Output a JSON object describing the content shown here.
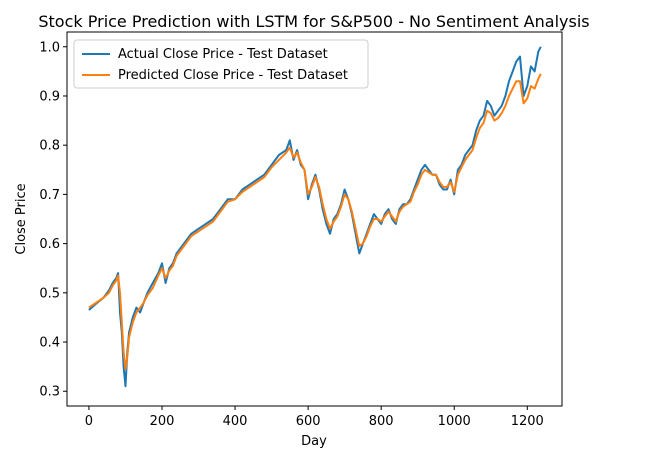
{
  "chart_data": {
    "type": "line",
    "title": "Stock Price Prediction with LSTM for S&P500 - No Sentiment Analysis",
    "xlabel": "Day",
    "ylabel": "Close Price",
    "xlim": [
      -60,
      1295
    ],
    "ylim": [
      0.27,
      1.03
    ],
    "xticks": [
      0,
      200,
      400,
      600,
      800,
      1000,
      1200
    ],
    "yticks": [
      0.3,
      0.4,
      0.5,
      0.6,
      0.7,
      0.8,
      0.9,
      1.0
    ],
    "ytick_labels": [
      "0.3",
      "0.4",
      "0.5",
      "0.6",
      "0.7",
      "0.8",
      "0.9",
      "1.0"
    ],
    "legend_position": "upper-left",
    "grid": false,
    "series": [
      {
        "name": "Actual Close Price - Test Dataset",
        "color": "#1f77b4",
        "points": [
          [
            0,
            0.465
          ],
          [
            20,
            0.478
          ],
          [
            40,
            0.49
          ],
          [
            55,
            0.505
          ],
          [
            65,
            0.52
          ],
          [
            75,
            0.53
          ],
          [
            80,
            0.54
          ],
          [
            85,
            0.46
          ],
          [
            90,
            0.42
          ],
          [
            95,
            0.35
          ],
          [
            100,
            0.31
          ],
          [
            105,
            0.38
          ],
          [
            110,
            0.42
          ],
          [
            120,
            0.45
          ],
          [
            130,
            0.47
          ],
          [
            140,
            0.46
          ],
          [
            150,
            0.48
          ],
          [
            160,
            0.5
          ],
          [
            175,
            0.52
          ],
          [
            190,
            0.54
          ],
          [
            200,
            0.56
          ],
          [
            210,
            0.52
          ],
          [
            220,
            0.55
          ],
          [
            230,
            0.56
          ],
          [
            240,
            0.58
          ],
          [
            260,
            0.6
          ],
          [
            280,
            0.62
          ],
          [
            300,
            0.63
          ],
          [
            320,
            0.64
          ],
          [
            340,
            0.65
          ],
          [
            360,
            0.67
          ],
          [
            380,
            0.69
          ],
          [
            400,
            0.69
          ],
          [
            420,
            0.71
          ],
          [
            440,
            0.72
          ],
          [
            460,
            0.73
          ],
          [
            480,
            0.74
          ],
          [
            500,
            0.76
          ],
          [
            520,
            0.78
          ],
          [
            540,
            0.79
          ],
          [
            550,
            0.81
          ],
          [
            560,
            0.77
          ],
          [
            570,
            0.79
          ],
          [
            580,
            0.76
          ],
          [
            590,
            0.75
          ],
          [
            600,
            0.69
          ],
          [
            610,
            0.72
          ],
          [
            620,
            0.74
          ],
          [
            630,
            0.71
          ],
          [
            640,
            0.67
          ],
          [
            650,
            0.64
          ],
          [
            660,
            0.62
          ],
          [
            670,
            0.65
          ],
          [
            680,
            0.66
          ],
          [
            690,
            0.68
          ],
          [
            700,
            0.71
          ],
          [
            710,
            0.69
          ],
          [
            720,
            0.66
          ],
          [
            730,
            0.62
          ],
          [
            740,
            0.58
          ],
          [
            750,
            0.6
          ],
          [
            760,
            0.62
          ],
          [
            770,
            0.64
          ],
          [
            780,
            0.66
          ],
          [
            790,
            0.65
          ],
          [
            800,
            0.64
          ],
          [
            810,
            0.66
          ],
          [
            820,
            0.67
          ],
          [
            830,
            0.65
          ],
          [
            840,
            0.64
          ],
          [
            850,
            0.67
          ],
          [
            860,
            0.68
          ],
          [
            870,
            0.68
          ],
          [
            880,
            0.69
          ],
          [
            890,
            0.71
          ],
          [
            900,
            0.73
          ],
          [
            910,
            0.75
          ],
          [
            920,
            0.76
          ],
          [
            930,
            0.75
          ],
          [
            940,
            0.74
          ],
          [
            950,
            0.74
          ],
          [
            960,
            0.72
          ],
          [
            970,
            0.71
          ],
          [
            980,
            0.71
          ],
          [
            990,
            0.73
          ],
          [
            1000,
            0.7
          ],
          [
            1010,
            0.75
          ],
          [
            1020,
            0.76
          ],
          [
            1030,
            0.78
          ],
          [
            1040,
            0.79
          ],
          [
            1050,
            0.8
          ],
          [
            1060,
            0.83
          ],
          [
            1070,
            0.85
          ],
          [
            1080,
            0.86
          ],
          [
            1090,
            0.89
          ],
          [
            1100,
            0.88
          ],
          [
            1110,
            0.86
          ],
          [
            1120,
            0.87
          ],
          [
            1130,
            0.88
          ],
          [
            1140,
            0.9
          ],
          [
            1150,
            0.93
          ],
          [
            1160,
            0.95
          ],
          [
            1170,
            0.97
          ],
          [
            1180,
            0.98
          ],
          [
            1190,
            0.9
          ],
          [
            1200,
            0.92
          ],
          [
            1210,
            0.96
          ],
          [
            1220,
            0.95
          ],
          [
            1230,
            0.99
          ],
          [
            1237,
            1.0
          ]
        ]
      },
      {
        "name": "Predicted Close Price - Test Dataset",
        "color": "#ff7f0e",
        "points": [
          [
            0,
            0.47
          ],
          [
            20,
            0.48
          ],
          [
            40,
            0.49
          ],
          [
            55,
            0.5
          ],
          [
            65,
            0.515
          ],
          [
            75,
            0.525
          ],
          [
            80,
            0.535
          ],
          [
            85,
            0.5
          ],
          [
            90,
            0.44
          ],
          [
            95,
            0.38
          ],
          [
            100,
            0.345
          ],
          [
            105,
            0.37
          ],
          [
            110,
            0.41
          ],
          [
            120,
            0.44
          ],
          [
            130,
            0.46
          ],
          [
            140,
            0.47
          ],
          [
            150,
            0.48
          ],
          [
            160,
            0.495
          ],
          [
            175,
            0.51
          ],
          [
            190,
            0.535
          ],
          [
            200,
            0.55
          ],
          [
            210,
            0.53
          ],
          [
            220,
            0.545
          ],
          [
            230,
            0.555
          ],
          [
            240,
            0.575
          ],
          [
            260,
            0.595
          ],
          [
            280,
            0.615
          ],
          [
            300,
            0.625
          ],
          [
            320,
            0.635
          ],
          [
            340,
            0.645
          ],
          [
            360,
            0.665
          ],
          [
            380,
            0.685
          ],
          [
            400,
            0.69
          ],
          [
            420,
            0.705
          ],
          [
            440,
            0.715
          ],
          [
            460,
            0.725
          ],
          [
            480,
            0.735
          ],
          [
            500,
            0.755
          ],
          [
            520,
            0.77
          ],
          [
            540,
            0.785
          ],
          [
            550,
            0.795
          ],
          [
            560,
            0.775
          ],
          [
            570,
            0.785
          ],
          [
            580,
            0.765
          ],
          [
            590,
            0.75
          ],
          [
            600,
            0.7
          ],
          [
            610,
            0.715
          ],
          [
            620,
            0.735
          ],
          [
            630,
            0.715
          ],
          [
            640,
            0.68
          ],
          [
            650,
            0.65
          ],
          [
            660,
            0.63
          ],
          [
            670,
            0.645
          ],
          [
            680,
            0.655
          ],
          [
            690,
            0.675
          ],
          [
            700,
            0.7
          ],
          [
            710,
            0.69
          ],
          [
            720,
            0.665
          ],
          [
            730,
            0.63
          ],
          [
            740,
            0.595
          ],
          [
            750,
            0.6
          ],
          [
            760,
            0.615
          ],
          [
            770,
            0.635
          ],
          [
            780,
            0.65
          ],
          [
            790,
            0.65
          ],
          [
            800,
            0.645
          ],
          [
            810,
            0.655
          ],
          [
            820,
            0.665
          ],
          [
            830,
            0.655
          ],
          [
            840,
            0.645
          ],
          [
            850,
            0.665
          ],
          [
            860,
            0.675
          ],
          [
            870,
            0.68
          ],
          [
            880,
            0.685
          ],
          [
            890,
            0.705
          ],
          [
            900,
            0.72
          ],
          [
            910,
            0.74
          ],
          [
            920,
            0.75
          ],
          [
            930,
            0.745
          ],
          [
            940,
            0.74
          ],
          [
            950,
            0.74
          ],
          [
            960,
            0.725
          ],
          [
            970,
            0.715
          ],
          [
            980,
            0.715
          ],
          [
            990,
            0.725
          ],
          [
            1000,
            0.705
          ],
          [
            1010,
            0.74
          ],
          [
            1020,
            0.755
          ],
          [
            1030,
            0.77
          ],
          [
            1040,
            0.78
          ],
          [
            1050,
            0.79
          ],
          [
            1060,
            0.815
          ],
          [
            1070,
            0.835
          ],
          [
            1080,
            0.845
          ],
          [
            1090,
            0.87
          ],
          [
            1100,
            0.865
          ],
          [
            1110,
            0.85
          ],
          [
            1120,
            0.855
          ],
          [
            1130,
            0.865
          ],
          [
            1140,
            0.88
          ],
          [
            1150,
            0.9
          ],
          [
            1160,
            0.915
          ],
          [
            1170,
            0.93
          ],
          [
            1180,
            0.93
          ],
          [
            1190,
            0.885
          ],
          [
            1200,
            0.895
          ],
          [
            1210,
            0.92
          ],
          [
            1220,
            0.915
          ],
          [
            1230,
            0.935
          ],
          [
            1237,
            0.945
          ]
        ]
      }
    ]
  }
}
